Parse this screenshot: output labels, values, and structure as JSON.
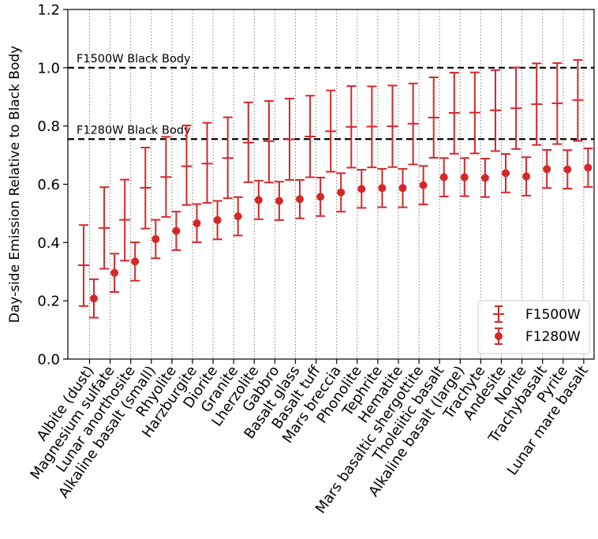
{
  "chart_data": {
    "type": "scatter",
    "ylabel": "Day-side Emission Relative to Black Body",
    "xlabel": "",
    "ylim": [
      0.0,
      1.2
    ],
    "yticks": [
      "0.0",
      "0.2",
      "0.4",
      "0.6",
      "0.8",
      "1.0",
      "1.2"
    ],
    "grid": "vertical dotted lines at each category",
    "legend_position": "lower-right",
    "categories": [
      "Albite (dust)",
      "Magnesium sulfate",
      "Lunar anorthosite",
      "Alkaline basalt (small)",
      "Rhyolite",
      "Harzburgite",
      "Diorite",
      "Granite",
      "Lherzolite",
      "Gabbro",
      "Basalt glass",
      "Basalt tuff",
      "Mars breccia",
      "Phonolite",
      "Tephrite",
      "Hematite",
      "Mars basaltic shergottite",
      "Tholeiitic basalt",
      "Alkaline basalt (large)",
      "Trachyte",
      "Andesite",
      "Norite",
      "Trachybasalt",
      "Pyrite",
      "Lunar mare basalt"
    ],
    "reference_lines": [
      {
        "label": "F1500W Black Body",
        "y": 1.0
      },
      {
        "label": "F1280W Black Body",
        "y": 0.755
      }
    ],
    "series": [
      {
        "name": "F1500W",
        "marker": "horizontal line",
        "color": "#d62728",
        "values": [
          0.322,
          0.45,
          0.478,
          0.588,
          0.625,
          0.662,
          0.671,
          0.69,
          0.743,
          0.748,
          0.754,
          0.764,
          0.782,
          0.797,
          0.798,
          0.799,
          0.808,
          0.829,
          0.845,
          0.846,
          0.854,
          0.861,
          0.875,
          0.878,
          0.889
        ],
        "err_low": [
          0.14,
          0.14,
          0.14,
          0.14,
          0.137,
          0.133,
          0.135,
          0.138,
          0.136,
          0.142,
          0.139,
          0.14,
          0.139,
          0.14,
          0.14,
          0.14,
          0.14,
          0.138,
          0.14,
          0.14,
          0.14,
          0.14,
          0.14,
          0.14,
          0.14
        ],
        "err_high": [
          0.138,
          0.14,
          0.138,
          0.138,
          0.138,
          0.14,
          0.14,
          0.14,
          0.138,
          0.138,
          0.14,
          0.14,
          0.14,
          0.14,
          0.138,
          0.14,
          0.138,
          0.138,
          0.138,
          0.138,
          0.138,
          0.14,
          0.14,
          0.138,
          0.138
        ]
      },
      {
        "name": "F1280W",
        "marker": "circle",
        "color": "#d62728",
        "values": [
          0.208,
          0.296,
          0.335,
          0.412,
          0.44,
          0.466,
          0.477,
          0.49,
          0.546,
          0.543,
          0.549,
          0.557,
          0.572,
          0.584,
          0.587,
          0.587,
          0.597,
          0.624,
          0.624,
          0.622,
          0.638,
          0.627,
          0.652,
          0.651,
          0.657
        ],
        "err_low": [
          0.066,
          0.066,
          0.066,
          0.066,
          0.066,
          0.065,
          0.066,
          0.066,
          0.066,
          0.066,
          0.066,
          0.066,
          0.066,
          0.065,
          0.066,
          0.066,
          0.066,
          0.066,
          0.065,
          0.066,
          0.066,
          0.066,
          0.065,
          0.066,
          0.066
        ],
        "err_high": [
          0.066,
          0.066,
          0.066,
          0.066,
          0.066,
          0.066,
          0.066,
          0.066,
          0.066,
          0.066,
          0.066,
          0.066,
          0.066,
          0.066,
          0.066,
          0.066,
          0.066,
          0.066,
          0.066,
          0.066,
          0.066,
          0.066,
          0.066,
          0.066,
          0.066
        ]
      }
    ]
  }
}
